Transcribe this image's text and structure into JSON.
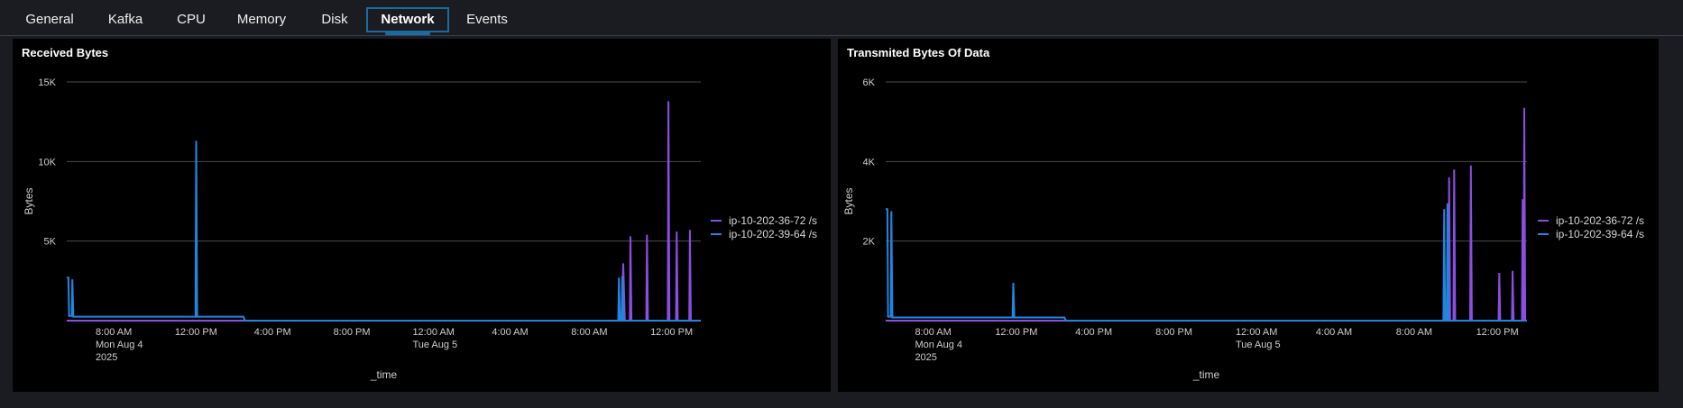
{
  "tabs": [
    {
      "label": "General",
      "active": false
    },
    {
      "label": "Kafka",
      "active": false
    },
    {
      "label": "CPU",
      "active": false
    },
    {
      "label": "Memory",
      "active": false
    },
    {
      "label": "Disk",
      "active": false
    },
    {
      "label": "Network",
      "active": true
    },
    {
      "label": "Events",
      "active": false
    }
  ],
  "colors": {
    "series_purple": "#8a4ee0",
    "series_blue": "#1f87e0",
    "active_tab_border": "#1c6aa3",
    "gridline": "#4a4a4a"
  },
  "chart_data": [
    {
      "type": "line",
      "title": "Received Bytes",
      "xlabel": "_time",
      "ylabel": "Bytes",
      "ylim": [
        0,
        15000
      ],
      "xlim": [
        "2025-08-04T06:00",
        "2025-08-05T14:00"
      ],
      "yticks": [
        {
          "value": 5000,
          "label": "5K"
        },
        {
          "value": 10000,
          "label": "10K"
        },
        {
          "value": 15000,
          "label": "15K"
        }
      ],
      "xticks": [
        {
          "time": "2025-08-04T08:00",
          "lines": [
            "8:00 AM",
            "Mon Aug 4",
            "2025"
          ]
        },
        {
          "time": "2025-08-04T12:00",
          "lines": [
            "12:00 PM"
          ]
        },
        {
          "time": "2025-08-04T16:00",
          "lines": [
            "4:00 PM"
          ]
        },
        {
          "time": "2025-08-04T20:00",
          "lines": [
            "8:00 PM"
          ]
        },
        {
          "time": "2025-08-05T00:00",
          "lines": [
            "12:00 AM",
            "Tue Aug 5"
          ]
        },
        {
          "time": "2025-08-05T04:00",
          "lines": [
            "4:00 AM"
          ]
        },
        {
          "time": "2025-08-05T08:00",
          "lines": [
            "8:00 AM"
          ]
        },
        {
          "time": "2025-08-05T12:00",
          "lines": [
            "12:00 PM"
          ]
        }
      ],
      "grid": true,
      "legend_position": "right",
      "series": [
        {
          "name": "ip-10-202-36-72 /s",
          "color": "#8a4ee0",
          "points": [
            [
              "2025-08-04T06:00",
              0
            ],
            [
              "2025-08-05T10:00",
              0
            ],
            [
              "2025-08-05T10:05",
              3600
            ],
            [
              "2025-08-05T10:10",
              0
            ],
            [
              "2025-08-05T10:25",
              0
            ],
            [
              "2025-08-05T10:27",
              5300
            ],
            [
              "2025-08-05T10:30",
              0
            ],
            [
              "2025-08-05T11:15",
              0
            ],
            [
              "2025-08-05T11:17",
              5400
            ],
            [
              "2025-08-05T11:20",
              0
            ],
            [
              "2025-08-05T12:20",
              0
            ],
            [
              "2025-08-05T12:22",
              13800
            ],
            [
              "2025-08-05T12:25",
              0
            ],
            [
              "2025-08-05T12:45",
              0
            ],
            [
              "2025-08-05T12:47",
              5600
            ],
            [
              "2025-08-05T12:50",
              0
            ],
            [
              "2025-08-05T13:25",
              0
            ],
            [
              "2025-08-05T13:27",
              5700
            ],
            [
              "2025-08-05T13:30",
              0
            ],
            [
              "2025-08-05T14:00",
              0
            ]
          ]
        },
        {
          "name": "ip-10-202-39-64 /s",
          "color": "#1f87e0",
          "points": [
            [
              "2025-08-04T06:00",
              2700
            ],
            [
              "2025-08-04T06:05",
              2700
            ],
            [
              "2025-08-04T06:07",
              300
            ],
            [
              "2025-08-04T06:15",
              300
            ],
            [
              "2025-08-04T06:17",
              2600
            ],
            [
              "2025-08-04T06:20",
              250
            ],
            [
              "2025-08-04T12:30",
              250
            ],
            [
              "2025-08-04T12:32",
              11300
            ],
            [
              "2025-08-04T12:35",
              250
            ],
            [
              "2025-08-04T14:55",
              250
            ],
            [
              "2025-08-04T15:00",
              0
            ],
            [
              "2025-08-05T09:50",
              0
            ],
            [
              "2025-08-05T09:52",
              2700
            ],
            [
              "2025-08-05T09:55",
              0
            ],
            [
              "2025-08-05T10:00",
              0
            ],
            [
              "2025-08-05T10:02",
              2800
            ],
            [
              "2025-08-05T10:05",
              0
            ],
            [
              "2025-08-05T14:00",
              0
            ]
          ]
        }
      ]
    },
    {
      "type": "line",
      "title": "Transmited Bytes Of Data",
      "xlabel": "_time",
      "ylabel": "Bytes",
      "ylim": [
        0,
        6000
      ],
      "xlim": [
        "2025-08-04T06:00",
        "2025-08-05T14:00"
      ],
      "yticks": [
        {
          "value": 2000,
          "label": "2K"
        },
        {
          "value": 4000,
          "label": "4K"
        },
        {
          "value": 6000,
          "label": "6K"
        }
      ],
      "xticks": [
        {
          "time": "2025-08-04T08:00",
          "lines": [
            "8:00 AM",
            "Mon Aug 4",
            "2025"
          ]
        },
        {
          "time": "2025-08-04T12:00",
          "lines": [
            "12:00 PM"
          ]
        },
        {
          "time": "2025-08-04T16:00",
          "lines": [
            "4:00 PM"
          ]
        },
        {
          "time": "2025-08-04T20:00",
          "lines": [
            "8:00 PM"
          ]
        },
        {
          "time": "2025-08-05T00:00",
          "lines": [
            "12:00 AM",
            "Tue Aug 5"
          ]
        },
        {
          "time": "2025-08-05T04:00",
          "lines": [
            "4:00 AM"
          ]
        },
        {
          "time": "2025-08-05T08:00",
          "lines": [
            "8:00 AM"
          ]
        },
        {
          "time": "2025-08-05T12:00",
          "lines": [
            "12:00 PM"
          ]
        }
      ],
      "grid": true,
      "legend_position": "right",
      "series": [
        {
          "name": "ip-10-202-36-72 /s",
          "color": "#8a4ee0",
          "points": [
            [
              "2025-08-04T06:00",
              0
            ],
            [
              "2025-08-05T10:05",
              0
            ],
            [
              "2025-08-05T10:07",
              3600
            ],
            [
              "2025-08-05T10:10",
              0
            ],
            [
              "2025-08-05T10:20",
              0
            ],
            [
              "2025-08-05T10:22",
              3800
            ],
            [
              "2025-08-05T10:25",
              0
            ],
            [
              "2025-08-05T11:10",
              0
            ],
            [
              "2025-08-05T11:12",
              3900
            ],
            [
              "2025-08-05T11:15",
              0
            ],
            [
              "2025-08-05T12:35",
              0
            ],
            [
              "2025-08-05T12:37",
              1200
            ],
            [
              "2025-08-05T12:40",
              0
            ],
            [
              "2025-08-05T13:15",
              0
            ],
            [
              "2025-08-05T13:17",
              1250
            ],
            [
              "2025-08-05T13:20",
              0
            ],
            [
              "2025-08-05T13:45",
              0
            ],
            [
              "2025-08-05T13:47",
              3050
            ],
            [
              "2025-08-05T13:50",
              0
            ],
            [
              "2025-08-05T13:52",
              5350
            ],
            [
              "2025-08-05T13:55",
              0
            ],
            [
              "2025-08-05T14:00",
              0
            ]
          ]
        },
        {
          "name": "ip-10-202-39-64 /s",
          "color": "#1f87e0",
          "points": [
            [
              "2025-08-04T06:00",
              2800
            ],
            [
              "2025-08-04T06:05",
              2800
            ],
            [
              "2025-08-04T06:07",
              100
            ],
            [
              "2025-08-04T06:15",
              100
            ],
            [
              "2025-08-04T06:17",
              2750
            ],
            [
              "2025-08-04T06:20",
              80
            ],
            [
              "2025-08-04T12:20",
              80
            ],
            [
              "2025-08-04T12:22",
              950
            ],
            [
              "2025-08-04T12:25",
              80
            ],
            [
              "2025-08-04T14:55",
              80
            ],
            [
              "2025-08-04T15:00",
              0
            ],
            [
              "2025-08-05T09:50",
              0
            ],
            [
              "2025-08-05T09:52",
              2800
            ],
            [
              "2025-08-05T09:55",
              0
            ],
            [
              "2025-08-05T10:00",
              0
            ],
            [
              "2025-08-05T10:02",
              2950
            ],
            [
              "2025-08-05T10:05",
              0
            ],
            [
              "2025-08-05T14:00",
              0
            ]
          ]
        }
      ]
    }
  ]
}
